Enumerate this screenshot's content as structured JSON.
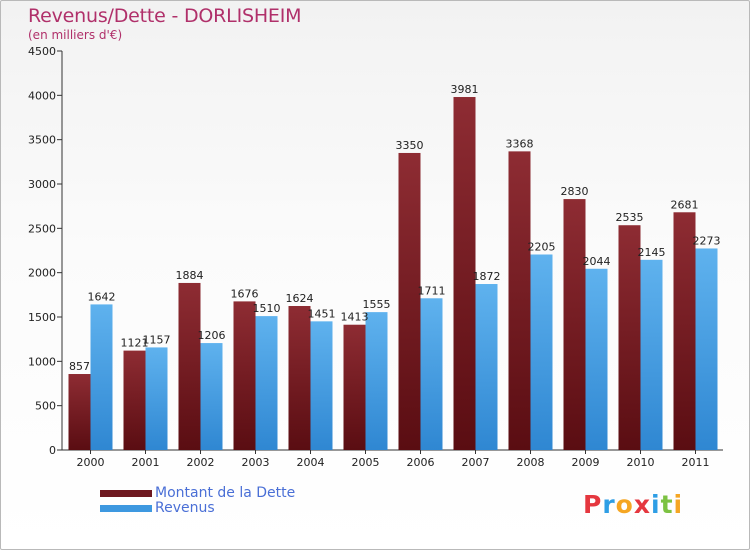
{
  "title": "Revenus/Dette - DORLISHEIM",
  "subtitle": "(en milliers d'€)",
  "legend": {
    "dette": "Montant de la Dette",
    "revenus": "Revenus"
  },
  "logo": {
    "letters": [
      "P",
      "r",
      "o",
      "x",
      "i",
      "t",
      "i"
    ],
    "colors": [
      "#e5373f",
      "#2e9ee5",
      "#f5a623",
      "#e5373f",
      "#2e9ee5",
      "#7cc242",
      "#f5a623"
    ]
  },
  "chart_data": {
    "type": "bar",
    "title": "Revenus/Dette - DORLISHEIM",
    "ylabel": "(en milliers d'€)",
    "xlabel": "",
    "ylim": [
      0,
      4500
    ],
    "yticks": [
      0,
      500,
      1000,
      1500,
      2000,
      2500,
      3000,
      3500,
      4000,
      4500
    ],
    "grid": false,
    "legend_position": "bottom-left",
    "categories": [
      "2000",
      "2001",
      "2002",
      "2003",
      "2004",
      "2005",
      "2006",
      "2007",
      "2008",
      "2009",
      "2010",
      "2011"
    ],
    "series": [
      {
        "name": "Montant de la Dette",
        "color": "#7a1e28",
        "values": [
          857,
          1121,
          1884,
          1676,
          1624,
          1413,
          3350,
          3981,
          3368,
          2830,
          2535,
          2681
        ]
      },
      {
        "name": "Revenus",
        "color": "#4aa3e6",
        "values": [
          1642,
          1157,
          1206,
          1510,
          1451,
          1555,
          1711,
          1872,
          2205,
          2044,
          2145,
          2273
        ]
      }
    ]
  }
}
